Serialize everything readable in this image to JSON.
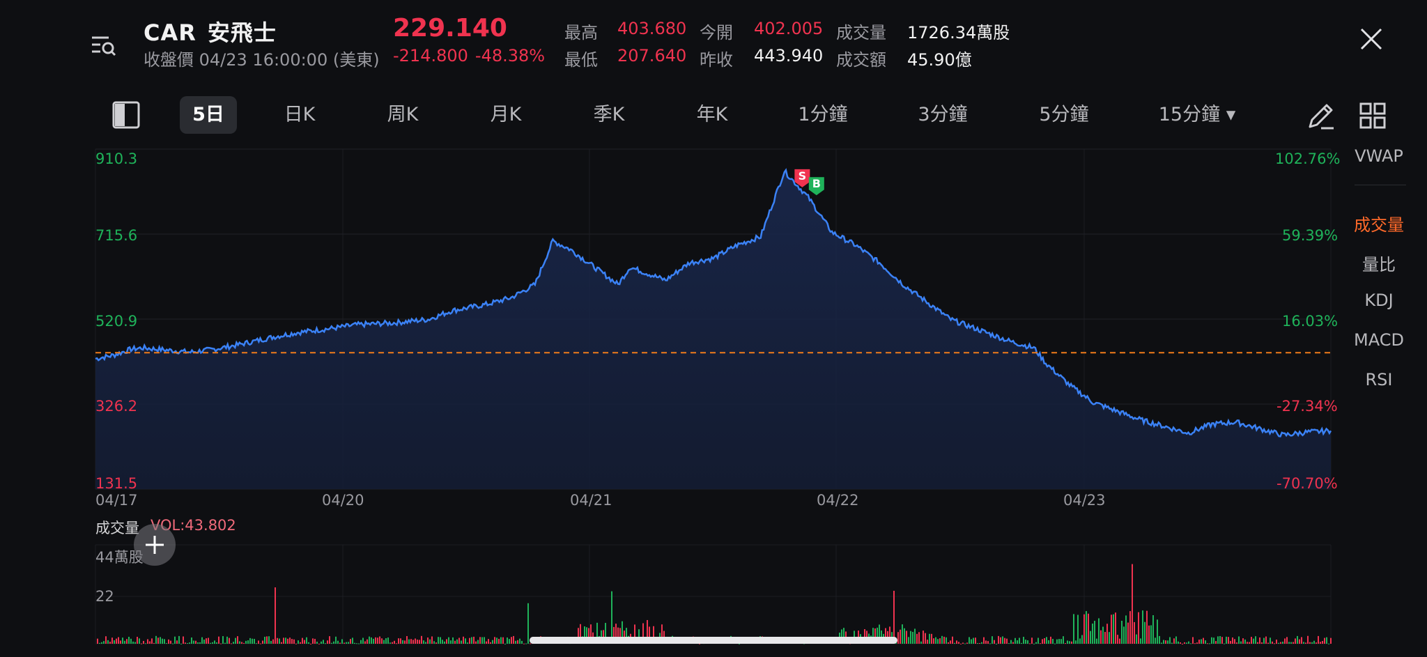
{
  "header": {
    "symbol": "CAR",
    "name": "安飛士",
    "status": "收盤價 04/23 16:00:00 (美東)",
    "price": "229.140",
    "change": "-214.800",
    "change_pct": "-48.38%",
    "stats": {
      "high_label": "最高",
      "high": "403.680",
      "low_label": "最低",
      "low": "207.640",
      "open_label": "今開",
      "open": "402.005",
      "prev_close_label": "昨收",
      "prev_close": "443.940",
      "volume_label": "成交量",
      "volume": "1726.34萬股",
      "turnover_label": "成交額",
      "turnover": "45.90億"
    }
  },
  "tabs": [
    {
      "label": "5日",
      "active": true
    },
    {
      "label": "日K"
    },
    {
      "label": "周K"
    },
    {
      "label": "月K"
    },
    {
      "label": "季K"
    },
    {
      "label": "年K"
    },
    {
      "label": "1分鐘"
    },
    {
      "label": "3分鐘"
    },
    {
      "label": "5分鐘"
    },
    {
      "label": "15分鐘 ▾"
    }
  ],
  "side_panel": [
    "VWAP",
    "成交量",
    "量比",
    "KDJ",
    "MACD",
    "RSI"
  ],
  "side_active": "成交量",
  "icons": {
    "menu": "menu-search-icon",
    "close": "close-icon",
    "layout": "layout-toggle-icon",
    "draw": "pen-icon",
    "grid": "grid-icon",
    "add": "plus-icon"
  },
  "colors": {
    "up": "#1fb35a",
    "down": "#f0334f",
    "line": "#3b82f6",
    "prev_close_line": "#f07c1a",
    "accent": "#ff6a2a"
  },
  "chart_data": {
    "type": "line",
    "y_labels_left": [
      "910.3",
      "715.6",
      "520.9",
      "326.2",
      "131.5"
    ],
    "y_labels_right": [
      "102.76%",
      "59.39%",
      "16.03%",
      "-27.34%",
      "-70.70%"
    ],
    "x_labels": [
      "04/17",
      "04/20",
      "04/21",
      "04/22",
      "04/23"
    ],
    "ylim": [
      131.5,
      910.3
    ],
    "prev_close": 443.94,
    "points": [
      [
        0,
        430
      ],
      [
        1.5,
        438
      ],
      [
        3,
        452
      ],
      [
        4,
        455
      ],
      [
        6,
        450
      ],
      [
        8,
        445
      ],
      [
        10,
        452
      ],
      [
        12,
        462
      ],
      [
        15,
        480
      ],
      [
        17,
        490
      ],
      [
        20,
        500
      ],
      [
        22,
        508
      ],
      [
        25,
        512
      ],
      [
        28,
        520
      ],
      [
        30,
        540
      ],
      [
        33,
        555
      ],
      [
        35,
        570
      ],
      [
        37,
        600
      ],
      [
        38.5,
        700
      ],
      [
        40,
        680
      ],
      [
        42,
        640
      ],
      [
        44,
        600
      ],
      [
        45,
        640
      ],
      [
        47,
        620
      ],
      [
        48,
        610
      ],
      [
        50,
        650
      ],
      [
        52,
        660
      ],
      [
        54,
        690
      ],
      [
        56,
        710
      ],
      [
        58,
        860
      ],
      [
        59,
        830
      ],
      [
        60,
        800
      ],
      [
        62,
        720
      ],
      [
        64,
        690
      ],
      [
        66,
        650
      ],
      [
        68,
        600
      ],
      [
        70,
        560
      ],
      [
        72,
        520
      ],
      [
        75,
        490
      ],
      [
        77,
        470
      ],
      [
        79,
        455
      ],
      [
        80,
        420
      ],
      [
        82,
        370
      ],
      [
        84,
        330
      ],
      [
        86,
        310
      ],
      [
        88,
        290
      ],
      [
        90,
        275
      ],
      [
        92,
        260
      ],
      [
        94,
        280
      ],
      [
        96,
        285
      ],
      [
        98,
        270
      ],
      [
        100,
        255
      ],
      [
        102,
        262
      ],
      [
        104,
        265
      ]
    ],
    "volume": {
      "title": "成交量",
      "last": "VOL:43.802",
      "y_labels": [
        "44萬股",
        "22"
      ],
      "ylim": [
        0,
        44
      ]
    },
    "markers": [
      {
        "label": "S",
        "color": "#f0334f"
      },
      {
        "label": "B",
        "color": "#1fb35a"
      }
    ]
  }
}
